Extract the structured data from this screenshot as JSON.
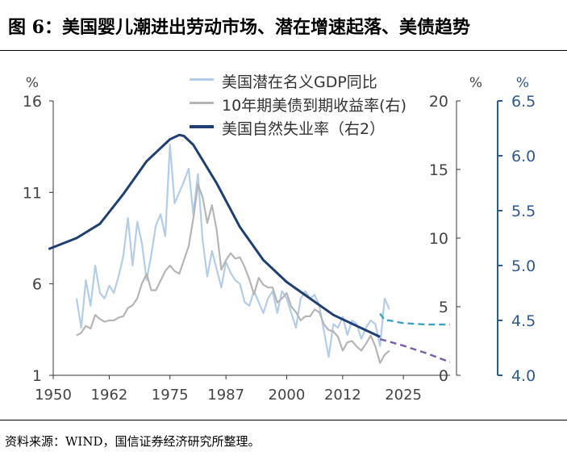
{
  "title": "图 6：美国婴儿潮进出劳动市场、潜在增速起落、美债趋势",
  "source": "资料来源：WIND，国信证券经济研究所整理。",
  "chart_data": {
    "type": "line",
    "axes": {
      "left": {
        "unit": "%",
        "ylim": [
          1,
          16
        ],
        "ticks": [
          1,
          6,
          11,
          16
        ],
        "color": "#333333"
      },
      "right1": {
        "unit": "%",
        "ylim": [
          0,
          20
        ],
        "ticks": [
          0,
          5,
          10,
          15,
          20
        ],
        "color": "#333333"
      },
      "right2": {
        "unit": "%",
        "ylim": [
          4.0,
          6.5
        ],
        "ticks": [
          "4.0",
          "4.5",
          "5.0",
          "5.5",
          "6.0",
          "6.5"
        ],
        "color": "#2f5a8f"
      },
      "x": {
        "xlim": [
          1950,
          2035
        ],
        "ticks": [
          1950,
          1962,
          1975,
          1987,
          2000,
          2012,
          2025
        ]
      }
    },
    "grid": false,
    "legend_position": "top-center",
    "series": [
      {
        "name": "美国潜在名义GDP同比",
        "axis": "left",
        "color": "#b3cde8",
        "x": [
          1955,
          1956,
          1957,
          1958,
          1959,
          1960,
          1961,
          1962,
          1963,
          1964,
          1965,
          1966,
          1967,
          1968,
          1969,
          1970,
          1971,
          1972,
          1973,
          1974,
          1975,
          1976,
          1977,
          1978,
          1979,
          1980,
          1981,
          1982,
          1983,
          1984,
          1985,
          1986,
          1987,
          1988,
          1989,
          1990,
          1991,
          1992,
          1993,
          1994,
          1995,
          1996,
          1997,
          1998,
          1999,
          2000,
          2001,
          2002,
          2003,
          2004,
          2005,
          2006,
          2007,
          2008,
          2009,
          2010,
          2011,
          2012,
          2013,
          2014,
          2015,
          2016,
          2017,
          2018,
          2019,
          2020,
          2021,
          2022
        ],
        "values": [
          5.2,
          3.6,
          6.2,
          4.8,
          7.0,
          5.5,
          5.2,
          5.9,
          5.5,
          6.4,
          7.5,
          9.6,
          7.0,
          9.4,
          8.2,
          6.2,
          7.6,
          9.2,
          9.8,
          8.6,
          13.6,
          10.4,
          11.0,
          11.6,
          12.3,
          9.8,
          12.0,
          8.4,
          6.4,
          7.8,
          6.8,
          5.8,
          7.2,
          6.6,
          6.2,
          6.0,
          5.0,
          4.8,
          5.6,
          5.0,
          4.4,
          5.2,
          5.6,
          4.4,
          5.6,
          5.2,
          4.4,
          3.6,
          5.2,
          5.6,
          5.2,
          5.4,
          4.8,
          3.4,
          2.0,
          3.8,
          3.6,
          4.2,
          3.2,
          4.0,
          3.8,
          3.0,
          3.6,
          4.0,
          3.8,
          2.6,
          5.2,
          4.6
        ]
      },
      {
        "name": "10年期美债到期收益率(右)",
        "axis": "right1",
        "color": "#b5b5b5",
        "x": [
          1955,
          1956,
          1957,
          1958,
          1959,
          1960,
          1961,
          1962,
          1963,
          1964,
          1965,
          1966,
          1967,
          1968,
          1969,
          1970,
          1971,
          1972,
          1973,
          1974,
          1975,
          1976,
          1977,
          1978,
          1979,
          1980,
          1981,
          1982,
          1983,
          1984,
          1985,
          1986,
          1987,
          1988,
          1989,
          1990,
          1991,
          1992,
          1993,
          1994,
          1995,
          1996,
          1997,
          1998,
          1999,
          2000,
          2001,
          2002,
          2003,
          2004,
          2005,
          2006,
          2007,
          2008,
          2009,
          2010,
          2011,
          2012,
          2013,
          2014,
          2015,
          2016,
          2017,
          2018,
          2019,
          2020,
          2021,
          2022
        ],
        "values": [
          2.9,
          3.1,
          3.6,
          3.4,
          4.4,
          4.1,
          3.9,
          4.0,
          4.0,
          4.2,
          4.3,
          4.9,
          5.1,
          5.6,
          6.7,
          7.4,
          6.2,
          6.2,
          6.9,
          7.6,
          8.0,
          7.6,
          7.4,
          8.4,
          9.4,
          11.4,
          13.9,
          13.0,
          11.1,
          12.4,
          10.6,
          7.7,
          8.4,
          8.9,
          8.5,
          8.6,
          7.9,
          7.0,
          5.9,
          7.1,
          6.6,
          6.4,
          6.4,
          5.3,
          5.6,
          6.0,
          5.0,
          4.6,
          4.0,
          4.3,
          4.3,
          4.8,
          4.6,
          3.7,
          3.3,
          3.2,
          2.8,
          1.8,
          2.4,
          2.5,
          2.1,
          1.8,
          2.3,
          2.9,
          2.1,
          0.9,
          1.5,
          1.8
        ]
      },
      {
        "name": "美国自然失业率（右2）",
        "axis": "right2",
        "color": "#1f3f73",
        "x": [
          1949,
          1955,
          1960,
          1965,
          1970,
          1975,
          1977,
          1978,
          1980,
          1985,
          1990,
          1995,
          2000,
          2005,
          2010,
          2015,
          2020
        ],
        "values": [
          5.15,
          5.25,
          5.38,
          5.65,
          5.95,
          6.15,
          6.19,
          6.18,
          6.1,
          5.75,
          5.35,
          5.05,
          4.85,
          4.7,
          4.55,
          4.45,
          4.35
        ]
      }
    ],
    "projections": [
      {
        "axis": "right1",
        "color": "#3aa3c4",
        "x": [
          2020,
          2021,
          2022,
          2025,
          2030,
          2035
        ],
        "values": [
          4.5,
          4.0,
          4.0,
          3.8,
          3.7,
          3.7
        ]
      },
      {
        "axis": "right2",
        "color": "#7a5da8",
        "x": [
          2020,
          2025,
          2030,
          2035
        ],
        "values": [
          4.33,
          4.27,
          4.2,
          4.12
        ]
      }
    ]
  }
}
